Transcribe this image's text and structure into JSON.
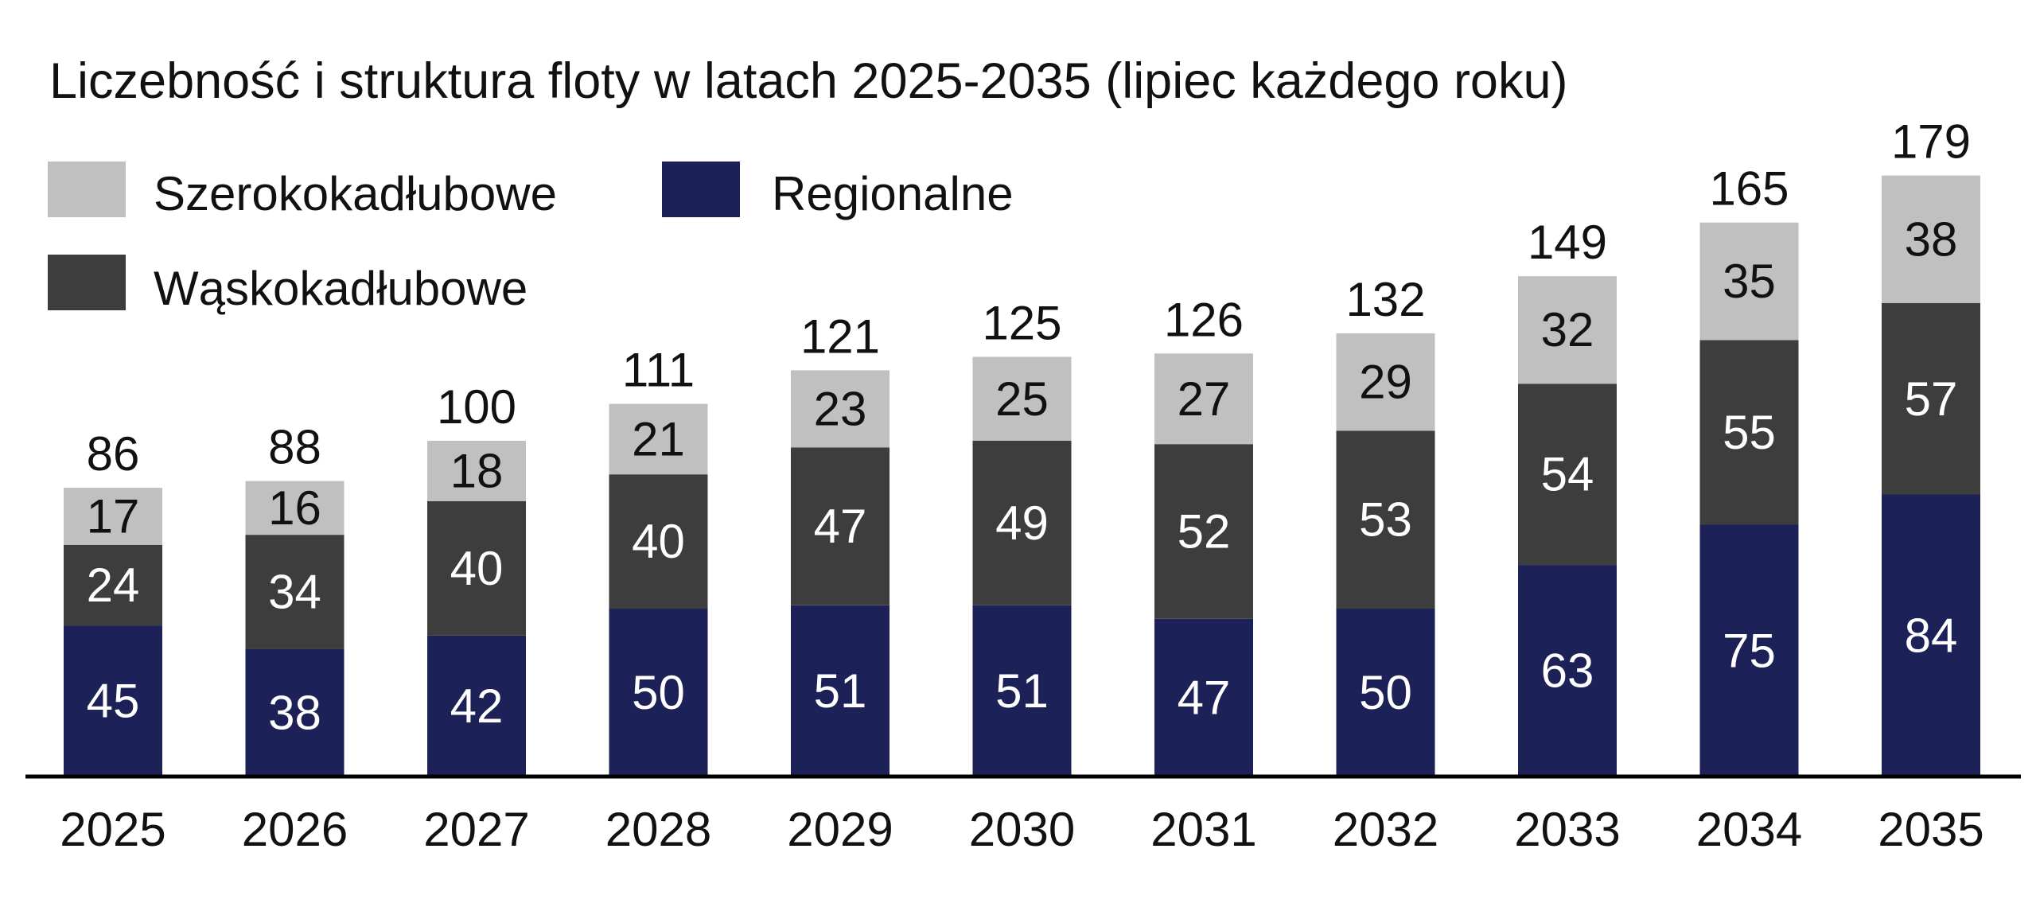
{
  "chart_data": {
    "type": "bar",
    "stacked": true,
    "title": "Liczebność i struktura floty w latach 2025-2035 (lipiec każdego roku)",
    "categories": [
      "2025",
      "2026",
      "2027",
      "2028",
      "2029",
      "2030",
      "2031",
      "2032",
      "2033",
      "2034",
      "2035"
    ],
    "series": [
      {
        "name": "Regionalne",
        "color": "#1c2157",
        "label_color": "#ffffff",
        "values": [
          45,
          38,
          42,
          50,
          51,
          51,
          47,
          50,
          63,
          75,
          84
        ]
      },
      {
        "name": "Wąskokadłubowe",
        "color": "#3d3d3d",
        "label_color": "#ffffff",
        "values": [
          24,
          34,
          40,
          40,
          47,
          49,
          52,
          53,
          54,
          55,
          57
        ]
      },
      {
        "name": "Szerokokadłubowe",
        "color": "#c0c0c0",
        "label_color": "#111111",
        "values": [
          17,
          16,
          18,
          21,
          23,
          25,
          27,
          29,
          32,
          35,
          38
        ]
      }
    ],
    "totals": [
      86,
      88,
      100,
      111,
      121,
      125,
      126,
      132,
      149,
      165,
      179
    ],
    "legend": {
      "placement": "top-left",
      "order": [
        "Szerokokadłubowe",
        "Regionalne",
        "Wąskokadłubowe"
      ]
    },
    "ylim": [
      0,
      187
    ],
    "grid": false,
    "xlabel": "",
    "ylabel": ""
  }
}
